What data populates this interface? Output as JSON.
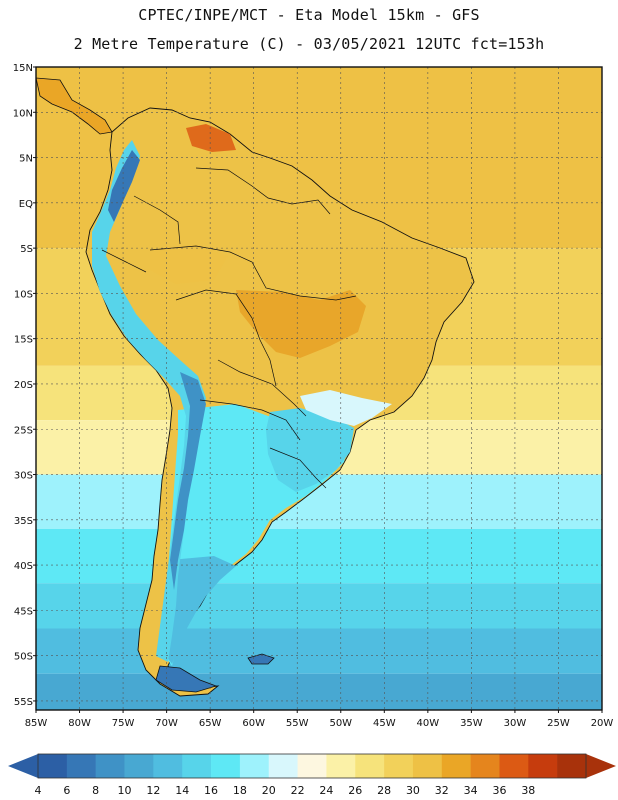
{
  "header": {
    "line1": "CPTEC/INPE/MCT -  Eta Model 15km - GFS",
    "line2": "2 Metre Temperature (C) - 03/05/2021 12UTC fct=153h"
  },
  "map": {
    "lat_labels": [
      "15N",
      "10N",
      "5N",
      "EQ",
      "5S",
      "10S",
      "15S",
      "20S",
      "25S",
      "30S",
      "35S",
      "40S",
      "45S",
      "50S",
      "55S"
    ],
    "lon_labels": [
      "85W",
      "80W",
      "75W",
      "70W",
      "65W",
      "60W",
      "55W",
      "50W",
      "45W",
      "40W",
      "35W",
      "30W",
      "25W",
      "20W"
    ],
    "extent": {
      "lon_min": -85,
      "lon_max": -20,
      "lat_min": -56,
      "lat_max": 15
    },
    "ocean_bands": [
      {
        "lat_from": 15,
        "lat_to": -5,
        "temp_c": 28
      },
      {
        "lat_from": -5,
        "lat_to": -18,
        "temp_c": 26
      },
      {
        "lat_from": -18,
        "lat_to": -24,
        "temp_c": 24
      },
      {
        "lat_from": -24,
        "lat_to": -30,
        "temp_c": 22
      },
      {
        "lat_from": -30,
        "lat_to": -36,
        "temp_c": 16
      },
      {
        "lat_from": -36,
        "lat_to": -42,
        "temp_c": 14
      },
      {
        "lat_from": -42,
        "lat_to": -47,
        "temp_c": 12
      },
      {
        "lat_from": -47,
        "lat_to": -52,
        "temp_c": 10
      },
      {
        "lat_from": -52,
        "lat_to": -56,
        "temp_c": 8
      }
    ]
  },
  "colorbar": {
    "ticks": [
      "4",
      "6",
      "8",
      "10",
      "12",
      "14",
      "16",
      "18",
      "20",
      "22",
      "24",
      "26",
      "28",
      "30",
      "32",
      "34",
      "36",
      "38"
    ],
    "colors": [
      "#2c5fa5",
      "#3677b6",
      "#3f92c6",
      "#48a8d2",
      "#50bde0",
      "#57d4ea",
      "#5ee8f5",
      "#9ef2fc",
      "#d8f7fc",
      "#fdf7e0",
      "#fbf1a7",
      "#f6e37b",
      "#f2d15a",
      "#eec145",
      "#eaa626",
      "#e5851d",
      "#dc5a14",
      "#c63c0d",
      "#a8320b"
    ],
    "low_color": "#2c5fa5",
    "high_color": "#a8320b"
  },
  "palette": {
    "land_tropical": "#edc247",
    "land_hot": "#e8a62a",
    "andes": "#57d4ea",
    "andes_high": "#3f92c6",
    "patagonia": "#50bde0",
    "south_cone": "#5ee8f5"
  }
}
